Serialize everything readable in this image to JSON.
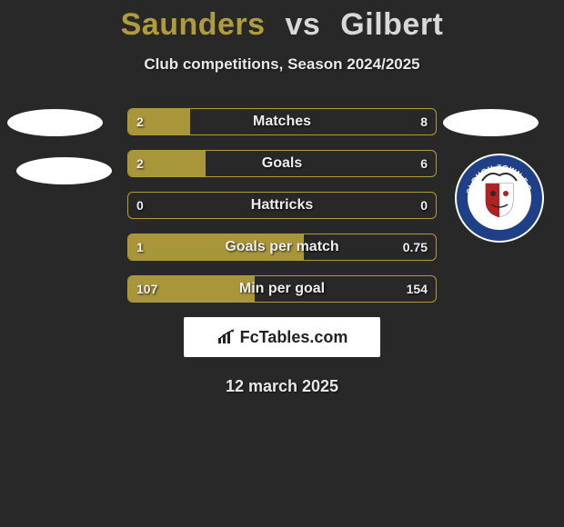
{
  "title": {
    "player1": "Saunders",
    "vs": "vs",
    "player2": "Gilbert",
    "player1_color": "#b09c3c",
    "vs_color": "#d8d8d8",
    "player2_color": "#d8d8d8"
  },
  "subtitle": "Club competitions, Season 2024/2025",
  "bars": {
    "bar_fill_color": "#a9953a",
    "bar_border_color": "#b09c3c",
    "track_bg": "transparent",
    "rows": [
      {
        "label": "Matches",
        "left": "2",
        "right": "8",
        "left_pct": 20
      },
      {
        "label": "Goals",
        "left": "2",
        "right": "6",
        "left_pct": 25
      },
      {
        "label": "Hattricks",
        "left": "0",
        "right": "0",
        "left_pct": 0
      },
      {
        "label": "Goals per match",
        "left": "1",
        "right": "0.75",
        "left_pct": 57
      },
      {
        "label": "Min per goal",
        "left": "107",
        "right": "154",
        "left_pct": 41
      }
    ]
  },
  "badge": {
    "top_text": "SLOUGH TOWN F.C.",
    "bottom_text": "SERVE WITH HONOUR",
    "ring_color": "#1f3f86",
    "text_color": "#ffffff",
    "crest_primary": "#b22222",
    "crest_secondary": "#d4af37"
  },
  "brand": {
    "text": "FcTables.com",
    "icon_color": "#222222"
  },
  "date": "12 march 2025",
  "colors": {
    "page_bg": "#282828",
    "text": "#e8e8e8"
  }
}
